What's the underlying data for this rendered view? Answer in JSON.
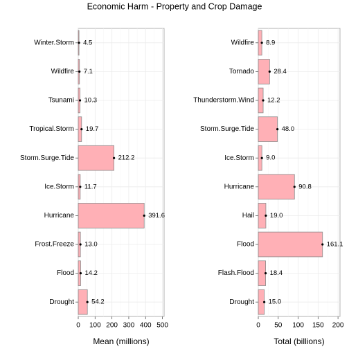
{
  "title": "Economic Harm - Property and Crop Damage",
  "colors": {
    "bar_fill": "#ffb0b6",
    "bar_stroke": "#8a8a8a",
    "grid": "#ebebeb",
    "panel_border": "#b0b0b0"
  },
  "chart_data": [
    {
      "type": "bar",
      "orientation": "horizontal",
      "xlabel": "Mean (millions)",
      "xlim": [
        0,
        510
      ],
      "xticks": [
        0,
        100,
        200,
        300,
        400,
        500
      ],
      "grid": true,
      "categories": [
        "Winter.Storm",
        "Wildfire",
        "Tsunami",
        "Tropical.Storm",
        "Storm.Surge.Tide",
        "Ice.Storm",
        "Hurricane",
        "Frost.Freeze",
        "Flood",
        "Drought"
      ],
      "values": [
        4.5,
        7.1,
        10.3,
        19.7,
        212.2,
        11.7,
        391.6,
        13.0,
        14.2,
        54.2
      ],
      "value_labels": [
        "4.5",
        "7.1",
        "10.3",
        "19.7",
        "212.2",
        "11.7",
        "391.6",
        "13.0",
        "14.2",
        "54.2"
      ]
    },
    {
      "type": "bar",
      "orientation": "horizontal",
      "xlabel": "Total (billions)",
      "xlim": [
        0,
        205
      ],
      "xticks": [
        0,
        50,
        100,
        150,
        200
      ],
      "grid": true,
      "categories": [
        "Wildfire",
        "Tornado",
        "Thunderstorm.Wind",
        "Storm.Surge.Tide",
        "Ice.Storm",
        "Hurricane",
        "Hail",
        "Flood",
        "Flash.Flood",
        "Drought"
      ],
      "values": [
        8.9,
        28.4,
        12.2,
        48.0,
        9.0,
        90.8,
        19.0,
        161.1,
        18.4,
        15.0
      ],
      "value_labels": [
        "8.9",
        "28.4",
        "12.2",
        "48.0",
        "9.0",
        "90.8",
        "19.0",
        "161.1",
        "18.4",
        "15.0"
      ]
    }
  ]
}
